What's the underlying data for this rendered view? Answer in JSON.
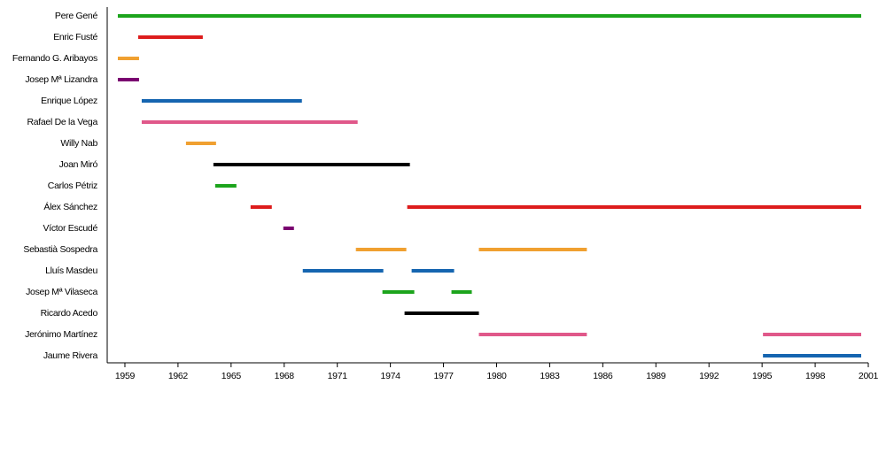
{
  "chart_data": {
    "type": "timeline",
    "xlim": [
      1958,
      2001
    ],
    "xticks": [
      1959,
      1962,
      1965,
      1968,
      1971,
      1974,
      1977,
      1980,
      1983,
      1986,
      1989,
      1992,
      1995,
      1998,
      2001
    ],
    "rows": [
      {
        "name": "Pere Gené",
        "color": "#1ca41c",
        "segments": [
          [
            1958.6,
            2000.6
          ]
        ]
      },
      {
        "name": "Enric Fusté",
        "color": "#dd1c1c",
        "segments": [
          [
            1959.75,
            1963.4
          ]
        ]
      },
      {
        "name": "Fernando G. Aribayos",
        "color": "#f0a030",
        "segments": [
          [
            1958.6,
            1959.8
          ]
        ]
      },
      {
        "name": "Josep Mª Lizandra",
        "color": "#7a0070",
        "segments": [
          [
            1958.6,
            1959.8
          ]
        ]
      },
      {
        "name": "Enrique López",
        "color": "#1565b0",
        "segments": [
          [
            1959.95,
            1969.0
          ]
        ]
      },
      {
        "name": "Rafael De la Vega",
        "color": "#e0588a",
        "segments": [
          [
            1959.95,
            1972.15
          ]
        ]
      },
      {
        "name": "Willy Nab",
        "color": "#f0a030",
        "segments": [
          [
            1962.45,
            1964.15
          ]
        ]
      },
      {
        "name": "Joan Miró",
        "color": "#000000",
        "segments": [
          [
            1964.0,
            1975.1
          ]
        ]
      },
      {
        "name": "Carlos Pétriz",
        "color": "#1ca41c",
        "segments": [
          [
            1964.1,
            1965.3
          ]
        ]
      },
      {
        "name": "Álex Sánchez",
        "color": "#dd1c1c",
        "segments": [
          [
            1966.1,
            1967.3
          ],
          [
            1974.95,
            2000.6
          ]
        ]
      },
      {
        "name": "Víctor Escudé",
        "color": "#7a0070",
        "segments": [
          [
            1967.95,
            1968.55
          ]
        ]
      },
      {
        "name": "Sebastià Sospedra",
        "color": "#f0a030",
        "segments": [
          [
            1972.05,
            1974.9
          ],
          [
            1979.0,
            1985.1
          ]
        ]
      },
      {
        "name": "Lluís Masdeu",
        "color": "#1565b0",
        "segments": [
          [
            1969.05,
            1973.6
          ],
          [
            1975.2,
            1977.6
          ]
        ]
      },
      {
        "name": "Josep Mª Vilaseca",
        "color": "#1ca41c",
        "segments": [
          [
            1973.55,
            1975.35
          ],
          [
            1977.45,
            1978.6
          ]
        ]
      },
      {
        "name": "Ricardo Acedo",
        "color": "#000000",
        "segments": [
          [
            1974.8,
            1979.0
          ]
        ]
      },
      {
        "name": "Jerónimo Martínez",
        "color": "#e0588a",
        "segments": [
          [
            1979.0,
            1985.1
          ],
          [
            1995.05,
            2000.6
          ]
        ]
      },
      {
        "name": "Jaume Rivera",
        "color": "#1565b0",
        "segments": [
          [
            1995.05,
            2000.6
          ]
        ]
      }
    ]
  }
}
